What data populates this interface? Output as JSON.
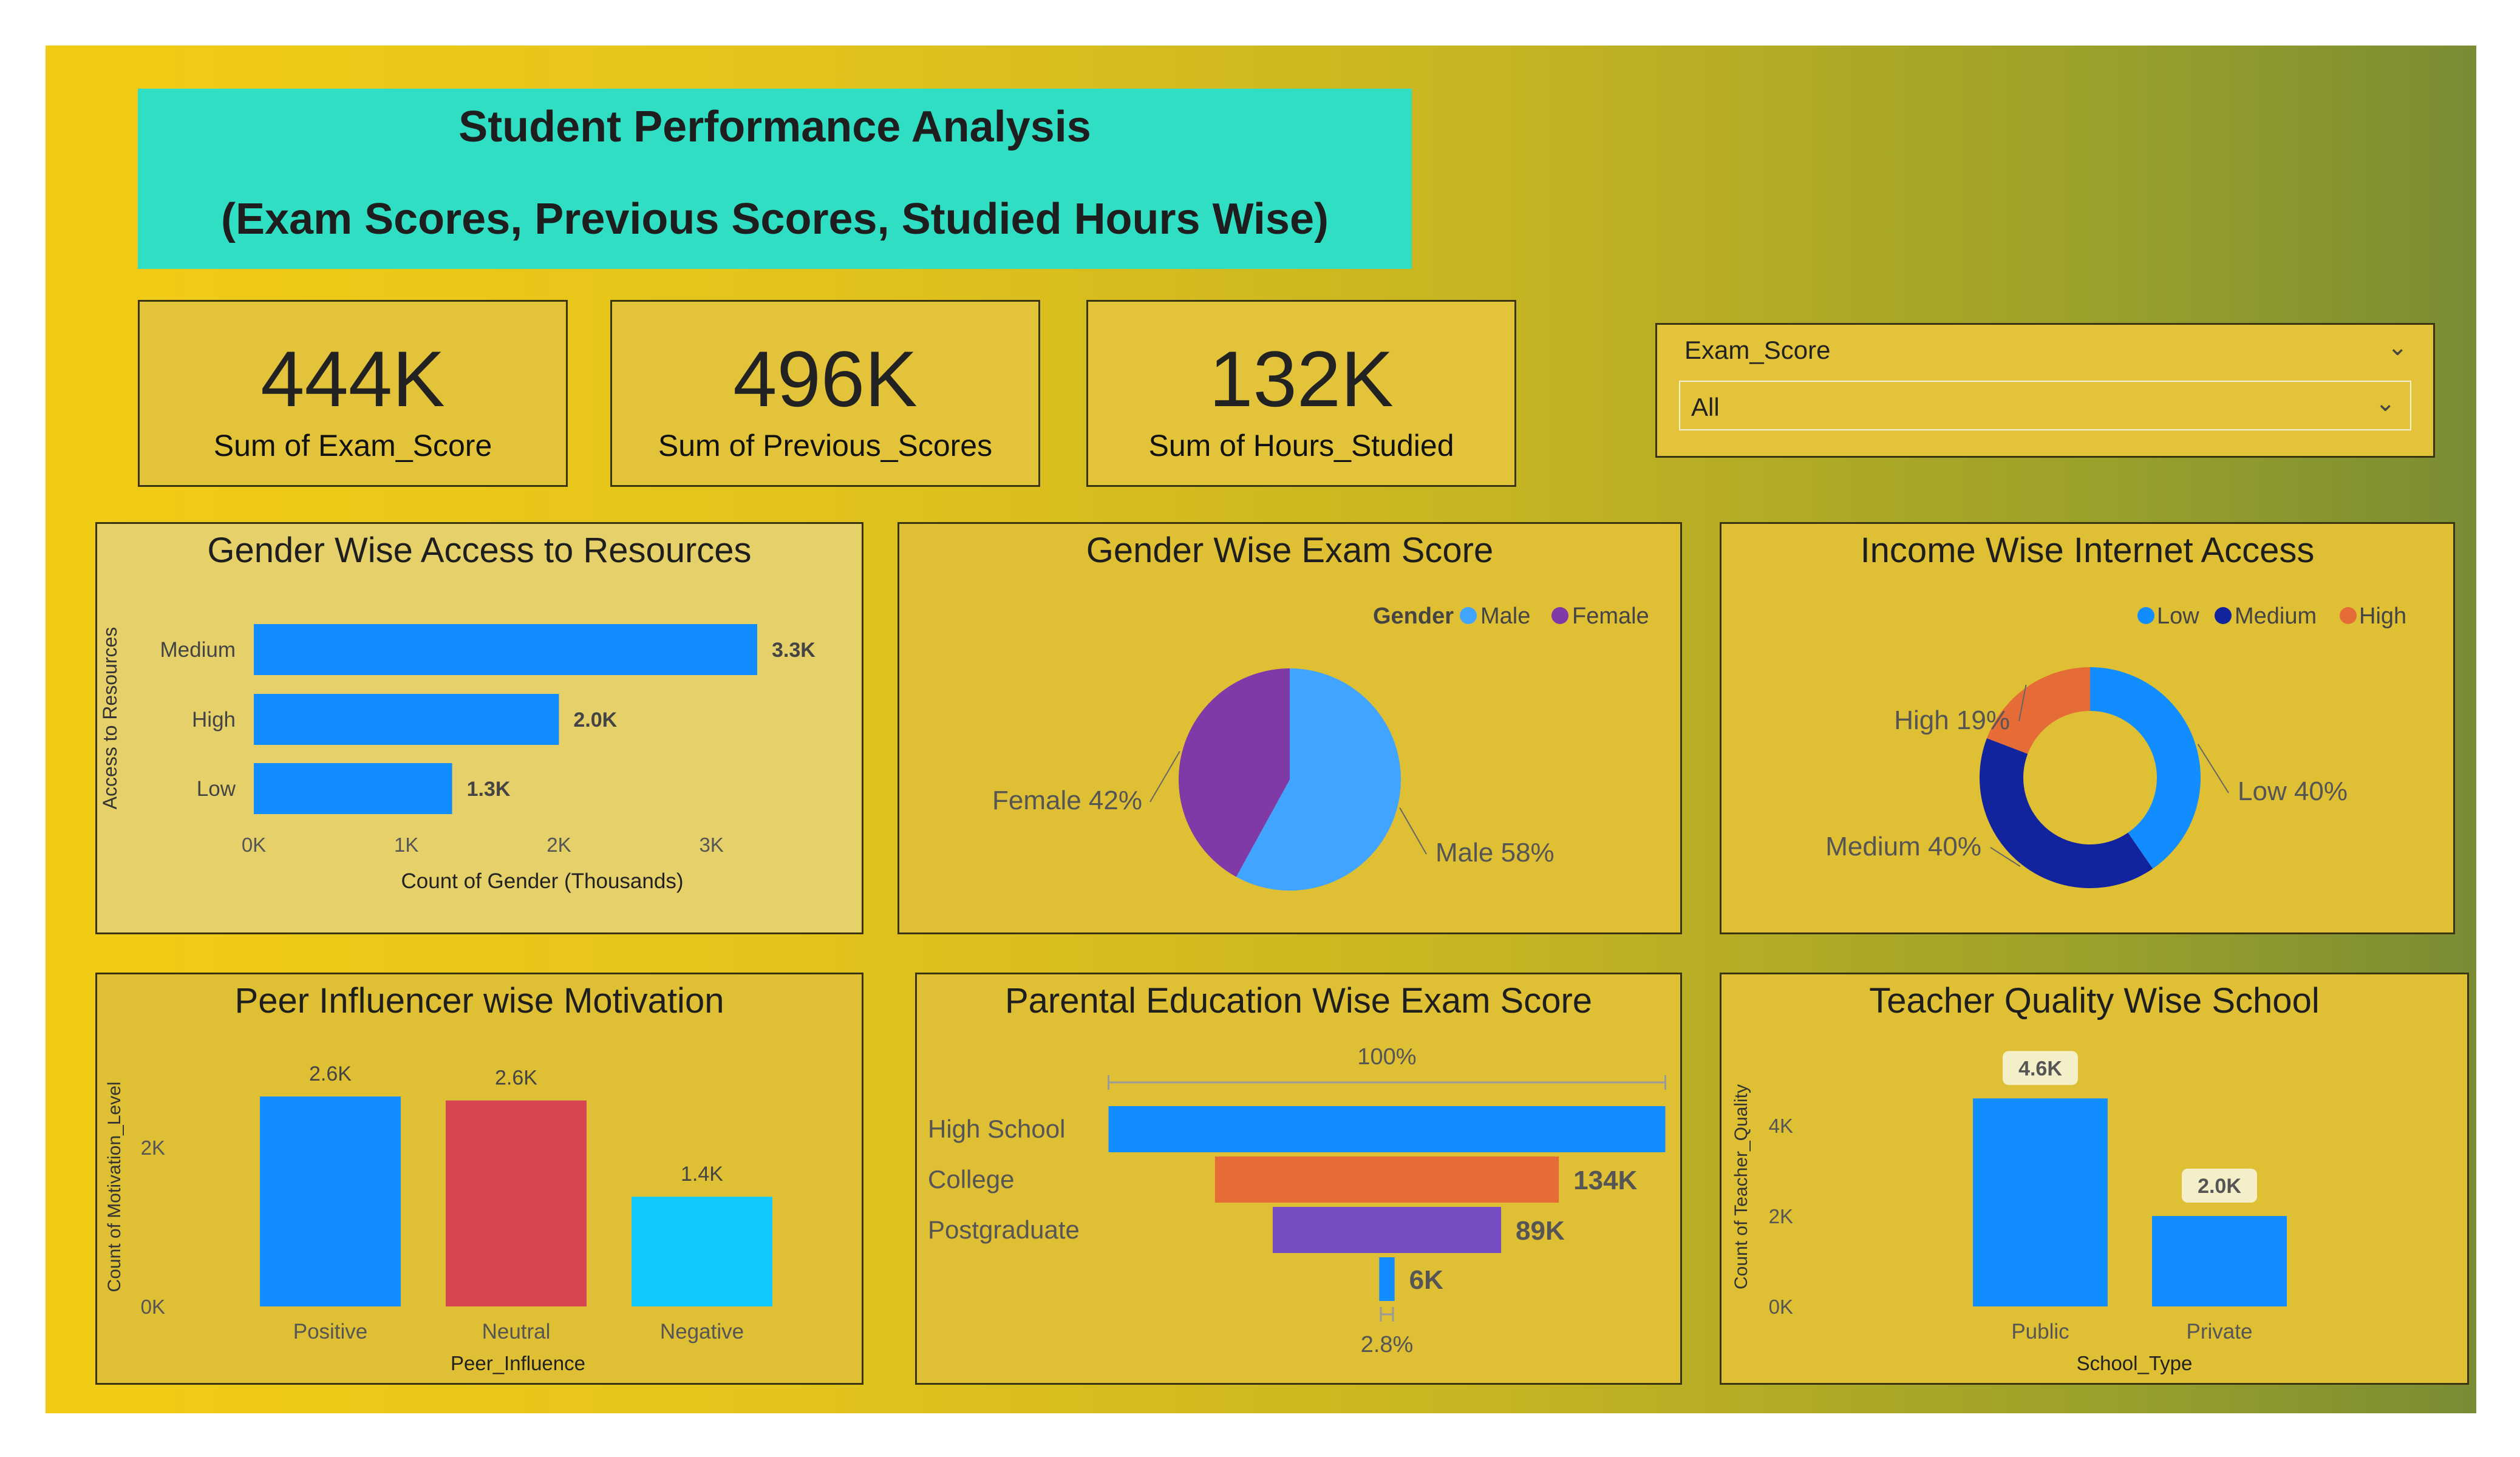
{
  "header": {
    "title_line1": "Student Performance Analysis",
    "title_line2": "(Exam Scores, Previous Scores, Studied Hours Wise)",
    "bg_color": "#30dfc3"
  },
  "kpis": [
    {
      "value": "444K",
      "label": "Sum of Exam_Score"
    },
    {
      "value": "496K",
      "label": "Sum of Previous_Scores"
    },
    {
      "value": "132K",
      "label": "Sum of Hours_Studied"
    }
  ],
  "slicer": {
    "field": "Exam_Score",
    "value": "All"
  },
  "colors": {
    "blue": "#118dff",
    "purple": "#7f3aa8",
    "light_blue": "#41a4ff",
    "dark_blue": "#12239e",
    "orange": "#e66c37",
    "red": "#d64550",
    "cyan": "#12c8fe",
    "violet": "#744ec2",
    "panel_bg": "#dfbf33"
  },
  "chart_data": [
    {
      "type": "bar",
      "orientation": "horizontal",
      "title": "Gender Wise Access to Resources",
      "xlabel": "Count of Gender (Thousands)",
      "ylabel": "Access to Resources",
      "categories": [
        "Medium",
        "High",
        "Low"
      ],
      "values": [
        3300,
        2000,
        1300
      ],
      "data_labels": [
        "3.3K",
        "2.0K",
        "1.3K"
      ],
      "xticks": [
        "0K",
        "1K",
        "2K",
        "3K"
      ],
      "xlim": [
        0,
        3400
      ]
    },
    {
      "type": "pie",
      "title": "Gender Wise Exam Score",
      "legend_title": "Gender",
      "legend": [
        "Male",
        "Female"
      ],
      "categories": [
        "Male",
        "Female"
      ],
      "values": [
        58,
        42
      ],
      "labels": [
        "Male 58%",
        "Female 42%"
      ]
    },
    {
      "type": "pie",
      "variant": "donut",
      "title": "Income Wise Internet Access",
      "legend": [
        "Low",
        "Medium",
        "High"
      ],
      "categories": [
        "Low",
        "Medium",
        "High"
      ],
      "values": [
        40,
        40,
        19
      ],
      "labels": [
        "Low 40%",
        "Medium 40%",
        "High 19%"
      ]
    },
    {
      "type": "bar",
      "title": "Peer Influencer wise Motivation",
      "xlabel": "Peer_Influence",
      "ylabel": "Count of Motivation_Level",
      "categories": [
        "Positive",
        "Neutral",
        "Negative"
      ],
      "values": [
        2640,
        2590,
        1380
      ],
      "data_labels": [
        "2.6K",
        "2.6K",
        "1.4K"
      ],
      "yticks": [
        "0K",
        "2K"
      ],
      "ylim": [
        0,
        2800
      ]
    },
    {
      "type": "bar",
      "variant": "funnel",
      "title": "Parental Education Wise Exam Score",
      "categories": [
        "High School",
        "College",
        "Postgraduate",
        ""
      ],
      "values": [
        217000,
        134000,
        89000,
        6000
      ],
      "data_labels": [
        "",
        "134K",
        "89K",
        "6K"
      ],
      "top_label": "100%",
      "bottom_label": "2.8%"
    },
    {
      "type": "bar",
      "title": "Teacher Quality Wise School",
      "xlabel": "School_Type",
      "ylabel": "Count of Teacher_Quality",
      "categories": [
        "Public",
        "Private"
      ],
      "values": [
        4600,
        2000
      ],
      "data_labels": [
        "4.6K",
        "2.0K"
      ],
      "yticks": [
        "0K",
        "2K",
        "4K"
      ],
      "ylim": [
        0,
        5000
      ]
    }
  ]
}
